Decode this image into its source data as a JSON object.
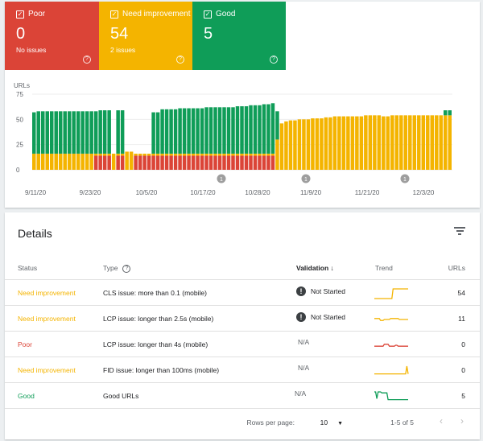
{
  "summary": {
    "poor": {
      "label": "Poor",
      "count": "0",
      "sub": "No issues",
      "color": "#db4437"
    },
    "need": {
      "label": "Need improvement",
      "count": "54",
      "sub": "2 issues",
      "color": "#f4b400"
    },
    "good": {
      "label": "Good",
      "count": "5",
      "sub": "",
      "color": "#0f9d58"
    }
  },
  "chart_data": {
    "type": "bar",
    "title": "",
    "ylabel": "URLs",
    "yticks": [
      "75",
      "50",
      "25",
      "0"
    ],
    "ylim": [
      0,
      75
    ],
    "xlabels": [
      "9/11/20",
      "9/23/20",
      "10/5/20",
      "10/17/20",
      "10/28/20",
      "11/9/20",
      "11/21/20",
      "12/3/20"
    ],
    "annotations": [
      "1",
      "1",
      "1"
    ],
    "series": [
      {
        "name": "Poor",
        "color": "#db4437",
        "values": [
          0,
          0,
          0,
          0,
          0,
          0,
          0,
          0,
          0,
          0,
          0,
          0,
          0,
          0,
          14,
          14,
          14,
          14,
          0,
          14,
          14,
          0,
          0,
          14,
          14,
          14,
          14,
          14,
          14,
          14,
          14,
          14,
          14,
          14,
          14,
          14,
          14,
          14,
          14,
          14,
          14,
          14,
          14,
          14,
          14,
          14,
          14,
          14,
          14,
          14,
          14,
          14,
          14,
          14,
          14,
          0,
          0,
          0,
          0,
          0,
          0,
          0,
          0,
          0,
          0,
          0,
          0,
          0,
          0,
          0,
          0,
          0,
          0,
          0,
          0,
          0,
          0,
          0,
          0,
          0,
          0,
          0,
          0,
          0,
          0,
          0,
          0,
          0,
          0,
          0,
          0,
          0,
          0,
          0,
          0
        ]
      },
      {
        "name": "Need improvement",
        "color": "#f4b400",
        "values": [
          16,
          16,
          16,
          16,
          16,
          16,
          16,
          16,
          16,
          16,
          16,
          16,
          16,
          16,
          2,
          2,
          2,
          2,
          16,
          2,
          2,
          18,
          18,
          2,
          2,
          2,
          2,
          2,
          2,
          2,
          2,
          2,
          2,
          2,
          2,
          2,
          2,
          2,
          2,
          2,
          2,
          2,
          2,
          2,
          2,
          2,
          2,
          2,
          2,
          2,
          2,
          2,
          2,
          2,
          2,
          30,
          46,
          48,
          49,
          49,
          50,
          50,
          50,
          51,
          51,
          51,
          52,
          52,
          53,
          53,
          53,
          53,
          53,
          53,
          53,
          54,
          54,
          54,
          54,
          53,
          53,
          54,
          54,
          54,
          54,
          54,
          54,
          54,
          54,
          54,
          54,
          54,
          54,
          54,
          54
        ]
      },
      {
        "name": "Good",
        "color": "#0f9d58",
        "values": [
          41,
          42,
          42,
          42,
          42,
          42,
          42,
          42,
          42,
          42,
          42,
          42,
          42,
          42,
          42,
          43,
          43,
          43,
          0,
          43,
          43,
          0,
          0,
          0,
          0,
          0,
          0,
          41,
          41,
          44,
          44,
          44,
          44,
          45,
          45,
          45,
          45,
          45,
          45,
          46,
          46,
          46,
          46,
          46,
          46,
          46,
          47,
          47,
          47,
          48,
          48,
          48,
          49,
          49,
          50,
          28,
          0,
          0,
          0,
          0,
          0,
          0,
          0,
          0,
          0,
          0,
          0,
          0,
          0,
          0,
          0,
          0,
          0,
          0,
          0,
          0,
          0,
          0,
          0,
          0,
          0,
          0,
          0,
          0,
          0,
          0,
          0,
          0,
          0,
          0,
          0,
          0,
          0,
          5,
          5
        ]
      }
    ]
  },
  "details": {
    "title": "Details",
    "columns": {
      "status": "Status",
      "type": "Type",
      "validation": "Validation",
      "trend": "Trend",
      "urls": "URLs"
    },
    "rows": [
      {
        "status": "Need improvement",
        "status_color": "#f4b400",
        "type": "CLS issue: more than 0.1 (mobile)",
        "validation": "Not Started",
        "urls": "54",
        "trend": [
          0,
          0,
          0,
          0,
          0,
          0,
          0,
          0,
          0,
          0,
          0,
          0,
          0,
          0,
          0,
          1,
          1,
          1,
          1,
          1,
          1,
          1,
          1,
          1,
          1,
          1,
          1,
          1
        ],
        "trend_color": "#f4b400"
      },
      {
        "status": "Need improvement",
        "status_color": "#f4b400",
        "type": "LCP issue: longer than 2.5s (mobile)",
        "validation": "Not Started",
        "urls": "11",
        "trend": [
          0.6,
          0.6,
          0.6,
          0.6,
          0.6,
          0.4,
          0.4,
          0.4,
          0.5,
          0.5,
          0.5,
          0.5,
          0.5,
          0.6,
          0.6,
          0.6,
          0.6,
          0.6,
          0.6,
          0.6,
          0.5,
          0.5,
          0.5,
          0.5,
          0.5,
          0.5,
          0.5,
          0.5
        ],
        "trend_color": "#f4b400"
      },
      {
        "status": "Poor",
        "status_color": "#db4437",
        "type": "LCP issue: longer than 4s (mobile)",
        "validation": "N/A",
        "urls": "0",
        "trend": [
          0.4,
          0.4,
          0.4,
          0.4,
          0.4,
          0.4,
          0.4,
          0.4,
          0.6,
          0.6,
          0.6,
          0.6,
          0.4,
          0.4,
          0.4,
          0.4,
          0.4,
          0.5,
          0.5,
          0.4,
          0.4,
          0.4,
          0.4,
          0.4,
          0.4,
          0.4,
          0.4,
          0.4
        ],
        "trend_color": "#db4437"
      },
      {
        "status": "Need improvement",
        "status_color": "#f4b400",
        "type": "FID issue: longer than 100ms (mobile)",
        "validation": "N/A",
        "urls": "0",
        "trend": [
          0.2,
          0.2,
          0.2,
          0.2,
          0.2,
          0.2,
          0.2,
          0.2,
          0.2,
          0.2,
          0.2,
          0.2,
          0.2,
          0.2,
          0.2,
          0.2,
          0.2,
          0.2,
          0.2,
          0.2,
          0.2,
          0.2,
          0.2,
          0.2,
          0.2,
          0.2,
          1,
          0.2
        ],
        "trend_color": "#f4b400"
      },
      {
        "status": "Good",
        "status_color": "#0f9d58",
        "type": "Good URLs",
        "validation": "N/A",
        "urls": "5",
        "trend": [
          1,
          1,
          0.3,
          1,
          1,
          1,
          0.9,
          0.9,
          0.9,
          0.9,
          0.9,
          0.2,
          0.2,
          0.2,
          0.2,
          0.2,
          0.2,
          0.2,
          0.2,
          0.2,
          0.2,
          0.2,
          0.2,
          0.2,
          0.2,
          0.2,
          0.2,
          0.2
        ],
        "trend_color": "#0f9d58"
      }
    ],
    "footer": {
      "rows_per_page_label": "Rows per page:",
      "rows_per_page": "10",
      "range": "1-5 of 5"
    }
  }
}
